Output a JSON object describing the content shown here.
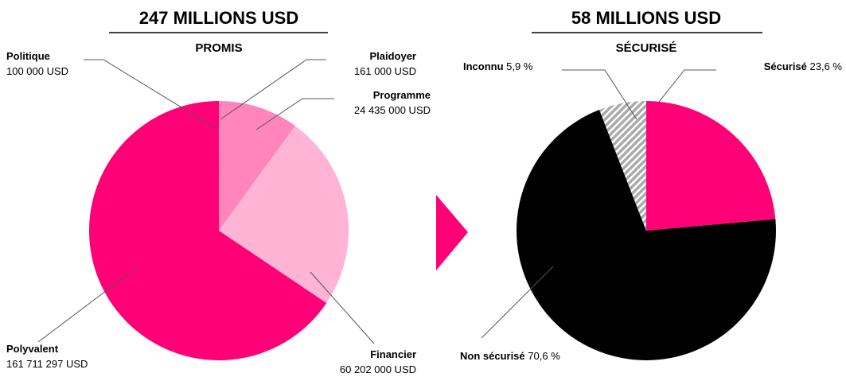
{
  "chart_data": [
    {
      "type": "pie",
      "title": "247 MILLIONS USD",
      "subtitle": "PROMIS",
      "categories": [
        "Politique",
        "Plaidoyer",
        "Programme",
        "Financier",
        "Polyvalent"
      ],
      "values": [
        100000,
        161000,
        24435000,
        60202000,
        161711297
      ],
      "value_labels": [
        "100 000 USD",
        "161 000 USD",
        "24 435 000 USD",
        "60 202 000 USD",
        "161 711 297 USD"
      ],
      "colors": [
        "#ffe3f0",
        "#ff4d9b",
        "#ff85bb",
        "#ffb3d5",
        "#ff0077"
      ]
    },
    {
      "type": "pie",
      "title": "58 MILLIONS USD",
      "subtitle": "SÉCURISÉ",
      "categories": [
        "Sécurisé",
        "Non sécurisé",
        "Inconnu"
      ],
      "values": [
        23.6,
        70.6,
        5.9
      ],
      "value_labels": [
        "23,6 %",
        "70,6 %",
        "5,9 %"
      ],
      "colors": [
        "#ff0077",
        "#000000",
        "#aaaaaa"
      ]
    }
  ]
}
